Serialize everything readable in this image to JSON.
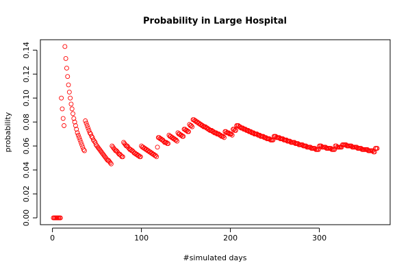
{
  "chart_data": {
    "type": "scatter",
    "title": "Probability in Large Hospital",
    "x_label": "#simulated days",
    "y_label": "probability",
    "color": "#ff0000",
    "grid": false,
    "xlim": [
      -13.56,
      379.56
    ],
    "ylim": [
      -0.0057,
      0.1487
    ],
    "xticks": [
      0,
      100,
      200,
      300
    ],
    "yticks": [
      {
        "value": 0,
        "label": "0.00"
      },
      {
        "value": 0.02,
        "label": "0.02"
      },
      {
        "value": 0.04,
        "label": "0.04"
      },
      {
        "value": 0.06,
        "label": "0.06"
      },
      {
        "value": 0.08,
        "label": "0.08"
      },
      {
        "value": 0.1,
        "label": "0.10"
      },
      {
        "value": 0.12,
        "label": "0.12"
      },
      {
        "value": 0.14,
        "label": "0.14"
      }
    ],
    "x": [
      1,
      2,
      3,
      4,
      5,
      6,
      7,
      8,
      9,
      10,
      11,
      12,
      13,
      14,
      15,
      16,
      17,
      18,
      19,
      20,
      21,
      22,
      23,
      24,
      25,
      26,
      27,
      28,
      29,
      30,
      31,
      32,
      33,
      34,
      35,
      36,
      37,
      38,
      39,
      40,
      41,
      42,
      43,
      44,
      45,
      46,
      47,
      48,
      49,
      50,
      51,
      52,
      53,
      54,
      55,
      56,
      57,
      58,
      59,
      60,
      61,
      62,
      63,
      64,
      65,
      66,
      67,
      68,
      69,
      70,
      71,
      72,
      73,
      74,
      75,
      76,
      77,
      78,
      79,
      80,
      81,
      82,
      83,
      84,
      85,
      86,
      87,
      88,
      89,
      90,
      91,
      92,
      93,
      94,
      95,
      96,
      97,
      98,
      99,
      100,
      101,
      102,
      103,
      104,
      105,
      106,
      107,
      108,
      109,
      110,
      111,
      112,
      113,
      114,
      115,
      116,
      117,
      118,
      119,
      120,
      121,
      122,
      123,
      124,
      125,
      126,
      127,
      128,
      129,
      130,
      131,
      132,
      133,
      134,
      135,
      136,
      137,
      138,
      139,
      140,
      141,
      142,
      143,
      144,
      145,
      146,
      147,
      148,
      149,
      150,
      151,
      152,
      153,
      154,
      155,
      156,
      157,
      158,
      159,
      160,
      161,
      162,
      163,
      164,
      165,
      166,
      167,
      168,
      169,
      170,
      171,
      172,
      173,
      174,
      175,
      176,
      177,
      178,
      179,
      180,
      181,
      182,
      183,
      184,
      185,
      186,
      187,
      188,
      189,
      190,
      191,
      192,
      193,
      194,
      195,
      196,
      197,
      198,
      199,
      200,
      201,
      202,
      203,
      204,
      205,
      206,
      207,
      208,
      209,
      210,
      211,
      212,
      213,
      214,
      215,
      216,
      217,
      218,
      219,
      220,
      221,
      222,
      223,
      224,
      225,
      226,
      227,
      228,
      229,
      230,
      231,
      232,
      233,
      234,
      235,
      236,
      237,
      238,
      239,
      240,
      241,
      242,
      243,
      244,
      245,
      246,
      247,
      248,
      249,
      250,
      251,
      252,
      253,
      254,
      255,
      256,
      257,
      258,
      259,
      260,
      261,
      262,
      263,
      264,
      265,
      266,
      267,
      268,
      269,
      270,
      271,
      272,
      273,
      274,
      275,
      276,
      277,
      278,
      279,
      280,
      281,
      282,
      283,
      284,
      285,
      286,
      287,
      288,
      289,
      290,
      291,
      292,
      293,
      294,
      295,
      296,
      297,
      298,
      299,
      300,
      301,
      302,
      303,
      304,
      305,
      306,
      307,
      308,
      309,
      310,
      311,
      312,
      313,
      314,
      315,
      316,
      317,
      318,
      319,
      320,
      321,
      322,
      323,
      324,
      325,
      326,
      327,
      328,
      329,
      330,
      331,
      332,
      333,
      334,
      335,
      336,
      337,
      338,
      339,
      340,
      341,
      342,
      343,
      344,
      345,
      346,
      347,
      348,
      349,
      350,
      351,
      352,
      353,
      354,
      355,
      356,
      357,
      358,
      359,
      360,
      361,
      362,
      363,
      364,
      365
    ],
    "values": [
      0,
      0,
      0,
      0,
      0,
      0,
      0,
      0,
      0,
      0.1,
      0.091,
      0.083,
      0.077,
      0.143,
      0.133,
      0.125,
      0.118,
      0.111,
      0.105,
      0.1,
      0.095,
      0.091,
      0.087,
      0.083,
      0.08,
      0.077,
      0.074,
      0.071,
      0.069,
      0.067,
      0.065,
      0.063,
      0.061,
      0.059,
      0.057,
      0.056,
      0.081,
      0.079,
      0.077,
      0.075,
      0.073,
      0.071,
      0.07,
      0.068,
      0.067,
      0.065,
      0.064,
      0.063,
      0.061,
      0.06,
      0.059,
      0.058,
      0.057,
      0.056,
      0.055,
      0.054,
      0.053,
      0.052,
      0.051,
      0.05,
      0.049,
      0.048,
      0.048,
      0.047,
      0.046,
      0.045,
      0.06,
      0.059,
      0.058,
      0.057,
      0.056,
      0.056,
      0.055,
      0.054,
      0.053,
      0.053,
      0.052,
      0.051,
      0.051,
      0.063,
      0.062,
      0.061,
      0.06,
      0.06,
      0.059,
      0.058,
      0.057,
      0.057,
      0.056,
      0.056,
      0.055,
      0.054,
      0.054,
      0.053,
      0.053,
      0.052,
      0.052,
      0.051,
      0.051,
      0.06,
      0.059,
      0.059,
      0.058,
      0.058,
      0.057,
      0.057,
      0.056,
      0.056,
      0.055,
      0.055,
      0.054,
      0.054,
      0.053,
      0.053,
      0.052,
      0.052,
      0.051,
      0.059,
      0.067,
      0.067,
      0.066,
      0.066,
      0.065,
      0.065,
      0.064,
      0.063,
      0.063,
      0.063,
      0.062,
      0.062,
      0.069,
      0.068,
      0.068,
      0.067,
      0.067,
      0.066,
      0.066,
      0.065,
      0.065,
      0.064,
      0.071,
      0.07,
      0.07,
      0.069,
      0.069,
      0.068,
      0.068,
      0.074,
      0.074,
      0.073,
      0.073,
      0.072,
      0.072,
      0.078,
      0.077,
      0.077,
      0.076,
      0.082,
      0.082,
      0.081,
      0.081,
      0.08,
      0.08,
      0.079,
      0.079,
      0.078,
      0.078,
      0.077,
      0.077,
      0.076,
      0.076,
      0.076,
      0.075,
      0.075,
      0.074,
      0.074,
      0.073,
      0.073,
      0.073,
      0.072,
      0.072,
      0.071,
      0.071,
      0.071,
      0.07,
      0.07,
      0.07,
      0.069,
      0.069,
      0.068,
      0.068,
      0.068,
      0.067,
      0.072,
      0.072,
      0.071,
      0.071,
      0.071,
      0.07,
      0.07,
      0.07,
      0.069,
      0.074,
      0.074,
      0.073,
      0.073,
      0.077,
      0.077,
      0.077,
      0.076,
      0.076,
      0.075,
      0.075,
      0.075,
      0.074,
      0.074,
      0.074,
      0.073,
      0.073,
      0.073,
      0.072,
      0.072,
      0.072,
      0.071,
      0.071,
      0.071,
      0.07,
      0.07,
      0.07,
      0.07,
      0.069,
      0.069,
      0.069,
      0.068,
      0.068,
      0.068,
      0.068,
      0.067,
      0.067,
      0.067,
      0.066,
      0.066,
      0.066,
      0.066,
      0.065,
      0.065,
      0.065,
      0.065,
      0.068,
      0.068,
      0.068,
      0.067,
      0.067,
      0.067,
      0.067,
      0.066,
      0.066,
      0.066,
      0.066,
      0.065,
      0.065,
      0.065,
      0.065,
      0.064,
      0.064,
      0.064,
      0.064,
      0.063,
      0.063,
      0.063,
      0.063,
      0.063,
      0.062,
      0.062,
      0.062,
      0.062,
      0.061,
      0.061,
      0.061,
      0.061,
      0.061,
      0.06,
      0.06,
      0.06,
      0.06,
      0.059,
      0.059,
      0.059,
      0.059,
      0.059,
      0.058,
      0.058,
      0.058,
      0.058,
      0.058,
      0.057,
      0.057,
      0.057,
      0.057,
      0.06,
      0.06,
      0.06,
      0.059,
      0.059,
      0.059,
      0.059,
      0.059,
      0.058,
      0.058,
      0.058,
      0.058,
      0.058,
      0.058,
      0.057,
      0.057,
      0.057,
      0.057,
      0.06,
      0.06,
      0.059,
      0.059,
      0.059,
      0.059,
      0.059,
      0.059,
      0.061,
      0.061,
      0.061,
      0.061,
      0.061,
      0.06,
      0.06,
      0.06,
      0.06,
      0.06,
      0.06,
      0.059,
      0.059,
      0.059,
      0.059,
      0.059,
      0.059,
      0.058,
      0.058,
      0.058,
      0.058,
      0.058,
      0.057,
      0.057,
      0.057,
      0.057,
      0.057,
      0.057,
      0.057,
      0.056,
      0.056,
      0.056,
      0.056,
      0.056,
      0.056,
      0.055,
      0.055,
      0.058,
      0.058,
      0.058
    ]
  }
}
